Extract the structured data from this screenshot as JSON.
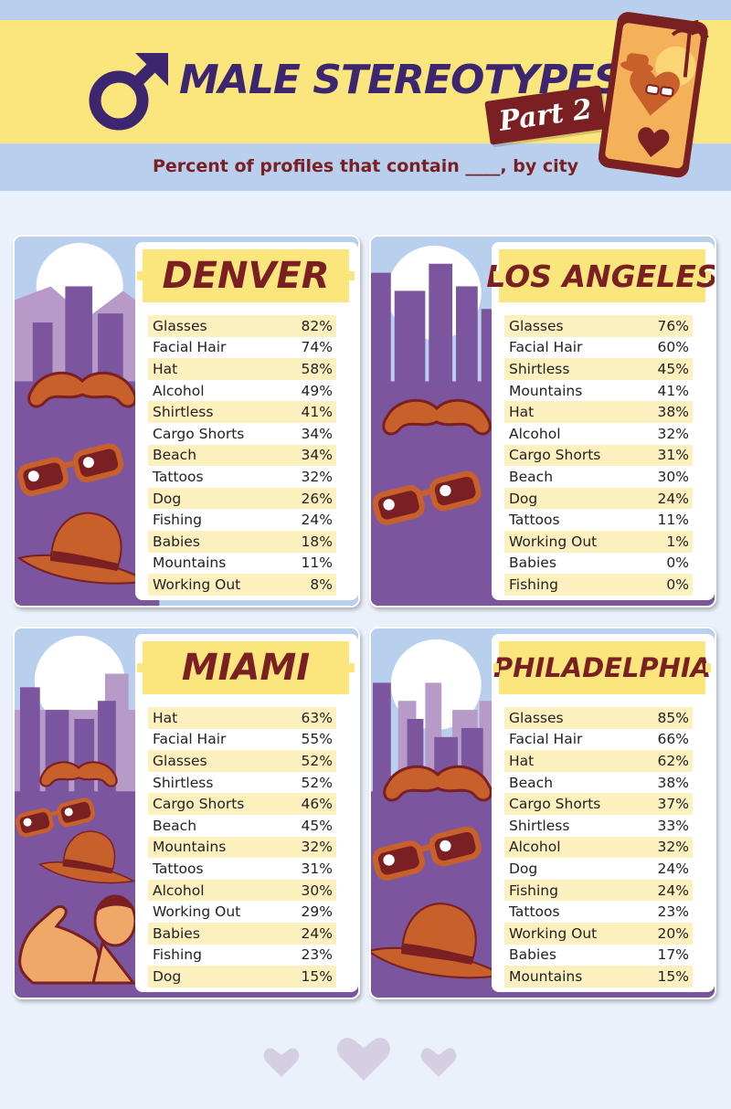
{
  "header": {
    "title": "MALE STEREOTYPES",
    "badge": "Part 2",
    "subtitle": "Percent of profiles that contain ____, by city"
  },
  "colors": {
    "title_purple": "#3d2670",
    "maroon": "#7a1f22",
    "yellow": "#fbe57d",
    "light_blue": "#b9cfee",
    "panel_purple": "#7b569e",
    "row_tint": "#fdf0bf",
    "accessory_orange": "#c8602c"
  },
  "icons": [
    "male-symbol-icon",
    "phone-dating-app-icon",
    "mustache-icon",
    "sunglasses-icon",
    "fedora-hat-icon",
    "flexing-man-icon",
    "heart-icon"
  ],
  "cities": [
    {
      "name": "DENVER",
      "rows": [
        {
          "label": "Glasses",
          "value": "82%"
        },
        {
          "label": "Facial Hair",
          "value": "74%"
        },
        {
          "label": "Hat",
          "value": "58%"
        },
        {
          "label": "Alcohol",
          "value": "49%"
        },
        {
          "label": "Shirtless",
          "value": "41%"
        },
        {
          "label": "Cargo Shorts",
          "value": "34%"
        },
        {
          "label": "Beach",
          "value": "34%"
        },
        {
          "label": "Tattoos",
          "value": "32%"
        },
        {
          "label": "Dog",
          "value": "26%"
        },
        {
          "label": "Fishing",
          "value": "24%"
        },
        {
          "label": "Babies",
          "value": "18%"
        },
        {
          "label": "Mountains",
          "value": "11%"
        },
        {
          "label": "Working Out",
          "value": "8%"
        }
      ]
    },
    {
      "name": "LOS ANGELES",
      "rows": [
        {
          "label": "Glasses",
          "value": "76%"
        },
        {
          "label": "Facial Hair",
          "value": "60%"
        },
        {
          "label": "Shirtless",
          "value": "45%"
        },
        {
          "label": "Mountains",
          "value": "41%"
        },
        {
          "label": "Hat",
          "value": "38%"
        },
        {
          "label": "Alcohol",
          "value": "32%"
        },
        {
          "label": "Cargo Shorts",
          "value": "31%"
        },
        {
          "label": "Beach",
          "value": "30%"
        },
        {
          "label": "Dog",
          "value": "24%"
        },
        {
          "label": "Tattoos",
          "value": "11%"
        },
        {
          "label": "Working Out",
          "value": "1%"
        },
        {
          "label": "Babies",
          "value": "0%"
        },
        {
          "label": "Fishing",
          "value": "0%"
        }
      ]
    },
    {
      "name": "MIAMI",
      "rows": [
        {
          "label": "Hat",
          "value": "63%"
        },
        {
          "label": "Facial Hair",
          "value": "55%"
        },
        {
          "label": "Glasses",
          "value": "52%"
        },
        {
          "label": "Shirtless",
          "value": "52%"
        },
        {
          "label": "Cargo Shorts",
          "value": "46%"
        },
        {
          "label": "Beach",
          "value": "45%"
        },
        {
          "label": "Mountains",
          "value": "32%"
        },
        {
          "label": "Tattoos",
          "value": "31%"
        },
        {
          "label": "Alcohol",
          "value": "30%"
        },
        {
          "label": "Working Out",
          "value": "29%"
        },
        {
          "label": "Babies",
          "value": "24%"
        },
        {
          "label": "Fishing",
          "value": "23%"
        },
        {
          "label": "Dog",
          "value": "15%"
        }
      ]
    },
    {
      "name": "PHILADELPHIA",
      "rows": [
        {
          "label": "Glasses",
          "value": "85%"
        },
        {
          "label": "Facial Hair",
          "value": "66%"
        },
        {
          "label": "Hat",
          "value": "62%"
        },
        {
          "label": "Beach",
          "value": "38%"
        },
        {
          "label": "Cargo Shorts",
          "value": "37%"
        },
        {
          "label": "Shirtless",
          "value": "33%"
        },
        {
          "label": "Alcohol",
          "value": "32%"
        },
        {
          "label": "Dog",
          "value": "24%"
        },
        {
          "label": "Fishing",
          "value": "24%"
        },
        {
          "label": "Tattoos",
          "value": "23%"
        },
        {
          "label": "Working Out",
          "value": "20%"
        },
        {
          "label": "Babies",
          "value": "17%"
        },
        {
          "label": "Mountains",
          "value": "15%"
        }
      ]
    }
  ]
}
